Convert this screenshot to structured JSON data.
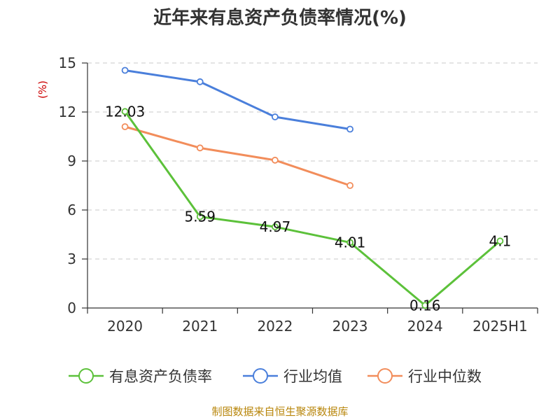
{
  "chart_data": {
    "type": "line",
    "title": "近年来有息资产负债率情况(%)",
    "unit_label": "(%)",
    "categories": [
      "2020",
      "2021",
      "2022",
      "2023",
      "2024",
      "2025H1"
    ],
    "ylim": [
      0,
      15
    ],
    "yticks": [
      0,
      3,
      6,
      9,
      12,
      15
    ],
    "grid": "horizontal-dashed",
    "legend_position": "bottom",
    "series": [
      {
        "name": "有息资产负债率",
        "color": "#5cc13a",
        "values": [
          12.03,
          5.59,
          4.97,
          4.01,
          0.16,
          4.1
        ],
        "labels": [
          "12.03",
          "5.59",
          "4.97",
          "4.01",
          "0.16",
          "4.1"
        ]
      },
      {
        "name": "行业均值",
        "color": "#4a7fdb",
        "values": [
          14.55,
          13.85,
          11.7,
          10.95,
          null,
          null
        ]
      },
      {
        "name": "行业中位数",
        "color": "#f28d5b",
        "values": [
          11.1,
          9.8,
          9.05,
          7.5,
          null,
          null
        ]
      }
    ]
  },
  "footer": "制图数据来自恒生聚源数据库"
}
